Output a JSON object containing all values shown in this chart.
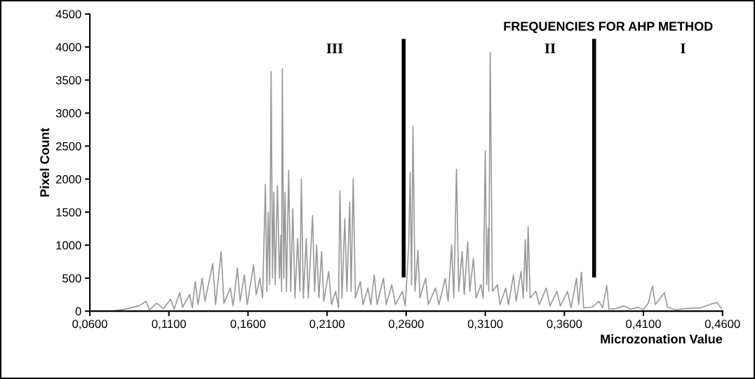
{
  "chart_data": {
    "type": "line",
    "title": "FREQUENCIES FOR AHP METHOD",
    "xlabel": "Microzonation Value",
    "ylabel": "Pixel Count",
    "xlim": [
      0.06,
      0.46
    ],
    "ylim": [
      0,
      4500
    ],
    "xticks": [
      {
        "value": 0.06,
        "label": "0,0600"
      },
      {
        "value": 0.11,
        "label": "0,1100"
      },
      {
        "value": 0.16,
        "label": "0,1600"
      },
      {
        "value": 0.21,
        "label": "0,2100"
      },
      {
        "value": 0.26,
        "label": "0,2600"
      },
      {
        "value": 0.31,
        "label": "0,3100"
      },
      {
        "value": 0.36,
        "label": "0,3600"
      },
      {
        "value": 0.41,
        "label": "0,4100"
      },
      {
        "value": 0.46,
        "label": "0,4600"
      }
    ],
    "yticks": [
      0,
      500,
      1000,
      1500,
      2000,
      2500,
      3000,
      3500,
      4000,
      4500
    ],
    "grid": false,
    "legend": false,
    "marker": "none",
    "line_style": "solid",
    "series": [
      {
        "color": "#999999",
        "x": [
          0.0733,
          0.0822,
          0.0911,
          0.0955,
          0.0977,
          0.1022,
          0.1066,
          0.1111,
          0.1133,
          0.1168,
          0.1186,
          0.1231,
          0.1248,
          0.1266,
          0.1284,
          0.131,
          0.1328,
          0.1377,
          0.1395,
          0.143,
          0.1448,
          0.1488,
          0.1506,
          0.1533,
          0.155,
          0.1577,
          0.1595,
          0.1635,
          0.1652,
          0.1675,
          0.1692,
          0.171,
          0.1719,
          0.1728,
          0.1737,
          0.1746,
          0.1755,
          0.1763,
          0.1772,
          0.1786,
          0.1799,
          0.1808,
          0.1812,
          0.1817,
          0.1826,
          0.1834,
          0.1843,
          0.1857,
          0.187,
          0.1883,
          0.1897,
          0.1914,
          0.1928,
          0.1937,
          0.195,
          0.1968,
          0.1981,
          0.2008,
          0.2021,
          0.2034,
          0.2048,
          0.2065,
          0.2079,
          0.211,
          0.2128,
          0.2154,
          0.2172,
          0.2181,
          0.2194,
          0.2212,
          0.2225,
          0.2243,
          0.2252,
          0.2265,
          0.2279,
          0.231,
          0.2327,
          0.2358,
          0.2376,
          0.2398,
          0.2416,
          0.2456,
          0.2474,
          0.2509,
          0.2532,
          0.2576,
          0.2594,
          0.2616,
          0.2625,
          0.2634,
          0.2643,
          0.2656,
          0.2674,
          0.2687,
          0.2723,
          0.274,
          0.2785,
          0.2807,
          0.2847,
          0.2865,
          0.2887,
          0.2901,
          0.2918,
          0.2932,
          0.2954,
          0.2967,
          0.2989,
          0.3002,
          0.3025,
          0.3042,
          0.3073,
          0.3087,
          0.31,
          0.3109,
          0.3118,
          0.3122,
          0.3131,
          0.3145,
          0.3176,
          0.3193,
          0.3229,
          0.3247,
          0.3278,
          0.3295,
          0.3326,
          0.334,
          0.3353,
          0.3362,
          0.3371,
          0.3384,
          0.342,
          0.3442,
          0.3486,
          0.3509,
          0.3553,
          0.3575,
          0.362,
          0.3642,
          0.3677,
          0.369,
          0.3708,
          0.3722,
          0.3775,
          0.3819,
          0.3842,
          0.3868,
          0.3882,
          0.393,
          0.3975,
          0.4019,
          0.4064,
          0.4099,
          0.413,
          0.4157,
          0.4175,
          0.4197,
          0.4233,
          0.4251,
          0.4308,
          0.4375,
          0.4463,
          0.453,
          0.4565,
          0.4597
        ],
        "values": [
          0,
          30,
          80,
          150,
          20,
          120,
          40,
          180,
          30,
          280,
          60,
          250,
          50,
          450,
          100,
          500,
          150,
          720,
          100,
          900,
          120,
          350,
          80,
          650,
          150,
          550,
          100,
          700,
          250,
          500,
          200,
          1920,
          300,
          1500,
          400,
          3630,
          500,
          1800,
          400,
          1900,
          500,
          1150,
          300,
          3670,
          500,
          1800,
          300,
          2130,
          300,
          1550,
          200,
          1100,
          300,
          2000,
          200,
          1100,
          200,
          1450,
          300,
          1000,
          200,
          900,
          150,
          600,
          100,
          300,
          50,
          1820,
          200,
          1400,
          300,
          1650,
          300,
          2010,
          200,
          450,
          100,
          350,
          100,
          550,
          100,
          500,
          100,
          400,
          100,
          300,
          80,
          1000,
          2100,
          400,
          2800,
          300,
          920,
          200,
          500,
          100,
          350,
          100,
          500,
          150,
          1000,
          200,
          2150,
          300,
          900,
          250,
          1050,
          300,
          800,
          200,
          400,
          200,
          2430,
          400,
          1250,
          300,
          3920,
          300,
          400,
          100,
          350,
          100,
          550,
          150,
          600,
          200,
          1080,
          300,
          1280,
          200,
          300,
          100,
          350,
          80,
          300,
          80,
          300,
          50,
          500,
          100,
          590,
          50,
          60,
          150,
          50,
          390,
          30,
          40,
          80,
          30,
          60,
          20,
          120,
          380,
          100,
          170,
          280,
          60,
          20,
          40,
          50,
          110,
          130,
          30
        ]
      }
    ],
    "ref_lines": [
      {
        "axis": "x",
        "value": 0.2584,
        "color": "#000000"
      },
      {
        "axis": "x",
        "value": 0.3788,
        "color": "#000000"
      }
    ],
    "annotations": [
      "III",
      "II",
      "I"
    ]
  }
}
